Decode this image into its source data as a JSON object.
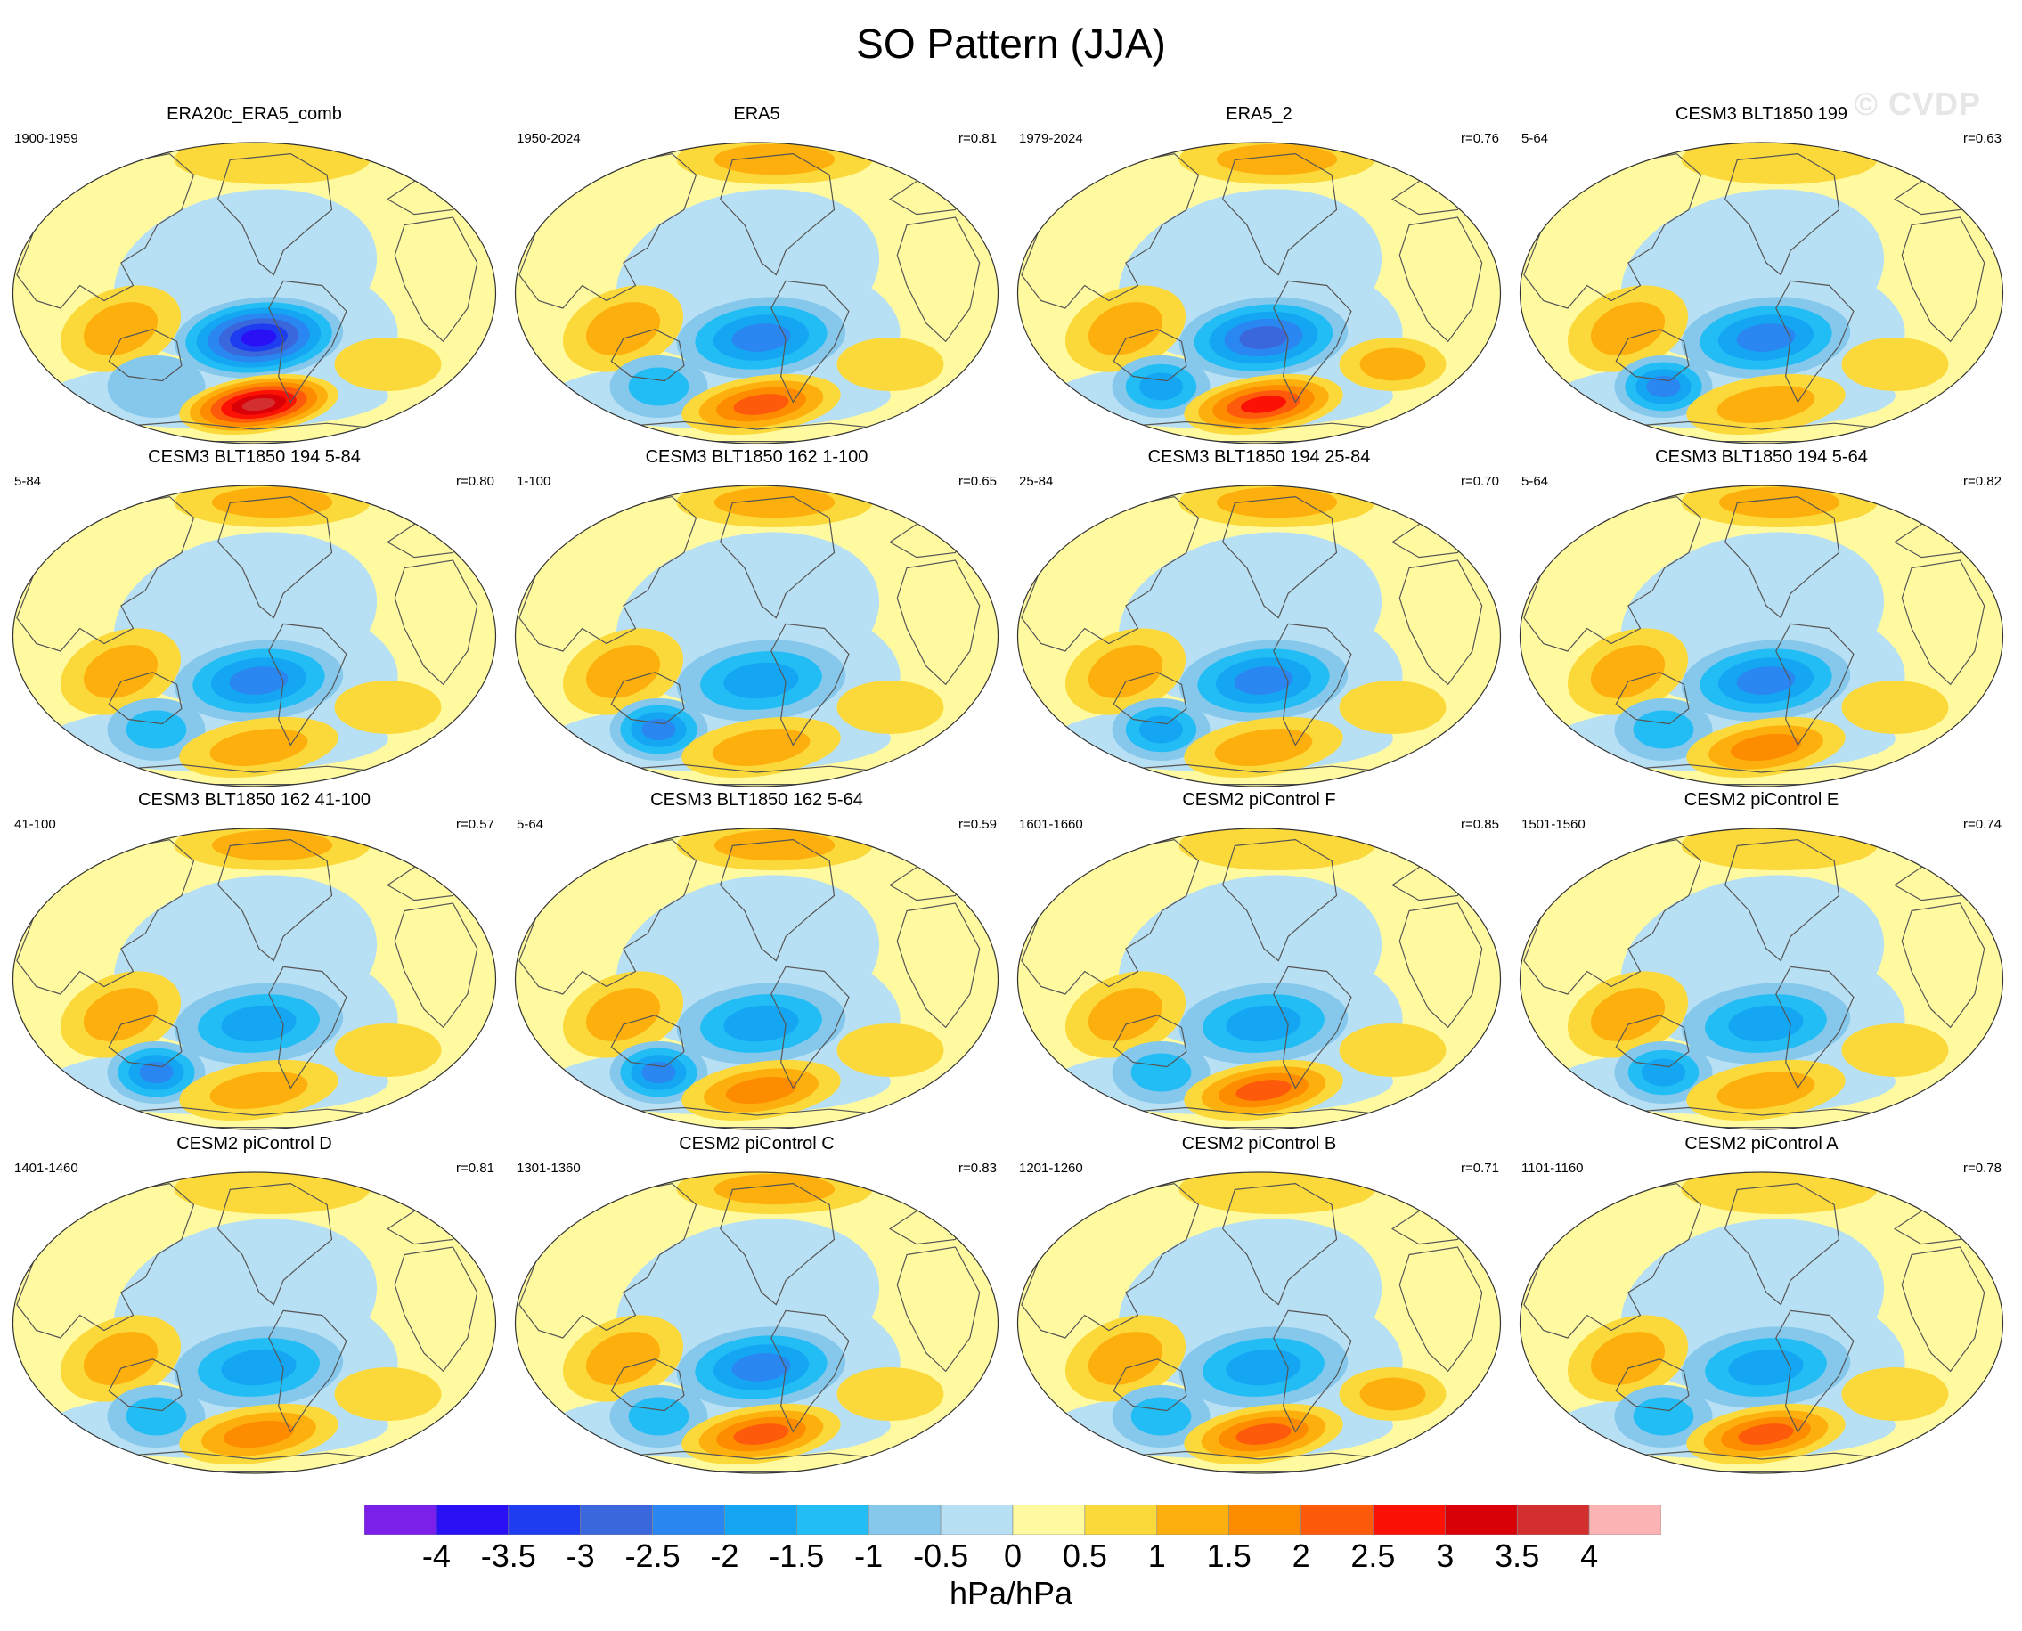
{
  "title": "SO Pattern (JJA)",
  "watermark": "© CVDP",
  "colors": {
    "land_outline": "#555555",
    "frame": "#333333"
  },
  "panels": [
    {
      "title": "ERA20c_ERA5_comb",
      "years": "1900-1959",
      "corr": "",
      "pattern": {
        "trop_hi": 0.6,
        "sp_low": 3.5,
        "sp_high": 3.5,
        "indian": 0.8,
        "sw_pac": 0.5,
        "wsa": 0.5,
        "arctic": 0.3
      }
    },
    {
      "title": "ERA5",
      "years": "1950-2024",
      "corr": "r=0.81",
      "pattern": {
        "trop_hi": 0.6,
        "sp_low": 2.2,
        "sp_high": 2.0,
        "indian": 0.9,
        "sw_pac": 0.8,
        "wsa": 0.6,
        "arctic": 0.8
      }
    },
    {
      "title": "ERA5_2",
      "years": "1979-2024",
      "corr": "r=0.76",
      "pattern": {
        "trop_hi": 0.7,
        "sp_low": 2.5,
        "sp_high": 2.3,
        "indian": 1.0,
        "sw_pac": 1.3,
        "wsa": 0.8,
        "arctic": 0.9
      }
    },
    {
      "title": "CESM3 BLT1850 199",
      "years": "5-64",
      "corr": "r=0.63",
      "pattern": {
        "trop_hi": 0.4,
        "sp_low": 1.8,
        "sp_high": 0.9,
        "indian": 0.9,
        "sw_pac": 2.0,
        "wsa": 0.6,
        "arctic": 0.3
      }
    },
    {
      "title": "CESM3 BLT1850 194 5-84",
      "years": "5-84",
      "corr": "r=0.80",
      "pattern": {
        "trop_hi": 0.4,
        "sp_low": 1.8,
        "sp_high": 1.2,
        "indian": 0.9,
        "sw_pac": 1.0,
        "wsa": 0.5,
        "arctic": 0.8
      }
    },
    {
      "title": "CESM3 BLT1850 162 1-100",
      "years": "1-100",
      "corr": "r=0.65",
      "pattern": {
        "trop_hi": 0.4,
        "sp_low": 1.6,
        "sp_high": 1.1,
        "indian": 1.0,
        "sw_pac": 1.8,
        "wsa": 0.5,
        "arctic": 0.8
      }
    },
    {
      "title": "CESM3 BLT1850 194 25-84",
      "years": "25-84",
      "corr": "r=0.70",
      "pattern": {
        "trop_hi": 0.4,
        "sp_low": 1.9,
        "sp_high": 1.0,
        "indian": 1.0,
        "sw_pac": 1.4,
        "wsa": 0.5,
        "arctic": 0.8
      }
    },
    {
      "title": "CESM3 BLT1850 194 5-64",
      "years": "5-64",
      "corr": "r=0.82",
      "pattern": {
        "trop_hi": 0.4,
        "sp_low": 1.8,
        "sp_high": 1.3,
        "indian": 0.9,
        "sw_pac": 1.1,
        "wsa": 0.6,
        "arctic": 0.8
      }
    },
    {
      "title": "CESM3 BLT1850 162 41-100",
      "years": "41-100",
      "corr": "r=0.57",
      "pattern": {
        "trop_hi": 0.4,
        "sp_low": 1.6,
        "sp_high": 0.9,
        "indian": 1.0,
        "sw_pac": 2.0,
        "wsa": 0.5,
        "arctic": 0.8
      }
    },
    {
      "title": "CESM3 BLT1850 162 5-64",
      "years": "5-64",
      "corr": "r=0.59",
      "pattern": {
        "trop_hi": 0.4,
        "sp_low": 1.3,
        "sp_high": 1.7,
        "indian": 1.1,
        "sw_pac": 2.0,
        "wsa": 0.5,
        "arctic": 0.8
      }
    },
    {
      "title": "CESM2 piControl F",
      "years": "1601-1660",
      "corr": "r=0.85",
      "pattern": {
        "trop_hi": 0.5,
        "sp_low": 1.7,
        "sp_high": 1.8,
        "indian": 0.9,
        "sw_pac": 0.9,
        "wsa": 0.6,
        "arctic": 0.7
      }
    },
    {
      "title": "CESM2 piControl E",
      "years": "1501-1560",
      "corr": "r=0.74",
      "pattern": {
        "trop_hi": 0.5,
        "sp_low": 1.7,
        "sp_high": 1.2,
        "indian": 0.9,
        "sw_pac": 1.3,
        "wsa": 0.6,
        "arctic": 0.4
      }
    },
    {
      "title": "CESM2 piControl D",
      "years": "1401-1460",
      "corr": "r=0.81",
      "pattern": {
        "trop_hi": 0.5,
        "sp_low": 1.7,
        "sp_high": 1.5,
        "indian": 0.8,
        "sw_pac": 0.9,
        "wsa": 0.7,
        "arctic": 0.3
      }
    },
    {
      "title": "CESM2 piControl C",
      "years": "1301-1360",
      "corr": "r=0.83",
      "pattern": {
        "trop_hi": 0.6,
        "sp_low": 1.8,
        "sp_high": 1.8,
        "indian": 0.9,
        "sw_pac": 0.8,
        "wsa": 0.6,
        "arctic": 0.8
      }
    },
    {
      "title": "CESM2 piControl B",
      "years": "1201-1260",
      "corr": "r=0.71",
      "pattern": {
        "trop_hi": 0.6,
        "sp_low": 1.7,
        "sp_high": 2.1,
        "indian": 0.9,
        "sw_pac": 1.0,
        "wsa": 1.0,
        "arctic": 0.4
      }
    },
    {
      "title": "CESM2 piControl A",
      "years": "1101-1160",
      "corr": "r=0.78",
      "pattern": {
        "trop_hi": 0.5,
        "sp_low": 1.7,
        "sp_high": 1.8,
        "indian": 0.8,
        "sw_pac": 0.9,
        "wsa": 0.6,
        "arctic": 0.3
      }
    }
  ],
  "colorbar": {
    "units": "hPa/hPa",
    "labels": [
      "-4",
      "-3.5",
      "-3",
      "-2.5",
      "-2",
      "-1.5",
      "-1",
      "-0.5",
      "0",
      "0.5",
      "1",
      "1.5",
      "2",
      "2.5",
      "3",
      "3.5",
      "4"
    ],
    "colors": [
      "#7b20e8",
      "#2a10f5",
      "#1e3cf0",
      "#3a68dc",
      "#2a86f0",
      "#14a6f3",
      "#22bdf5",
      "#86c8ec",
      "#b8e0f4",
      "#fffaa0",
      "#fcd93a",
      "#fdb00d",
      "#fe8c00",
      "#fe5a0b",
      "#fc1205",
      "#d90008",
      "#d42f2f",
      "#fbb3b3"
    ]
  }
}
